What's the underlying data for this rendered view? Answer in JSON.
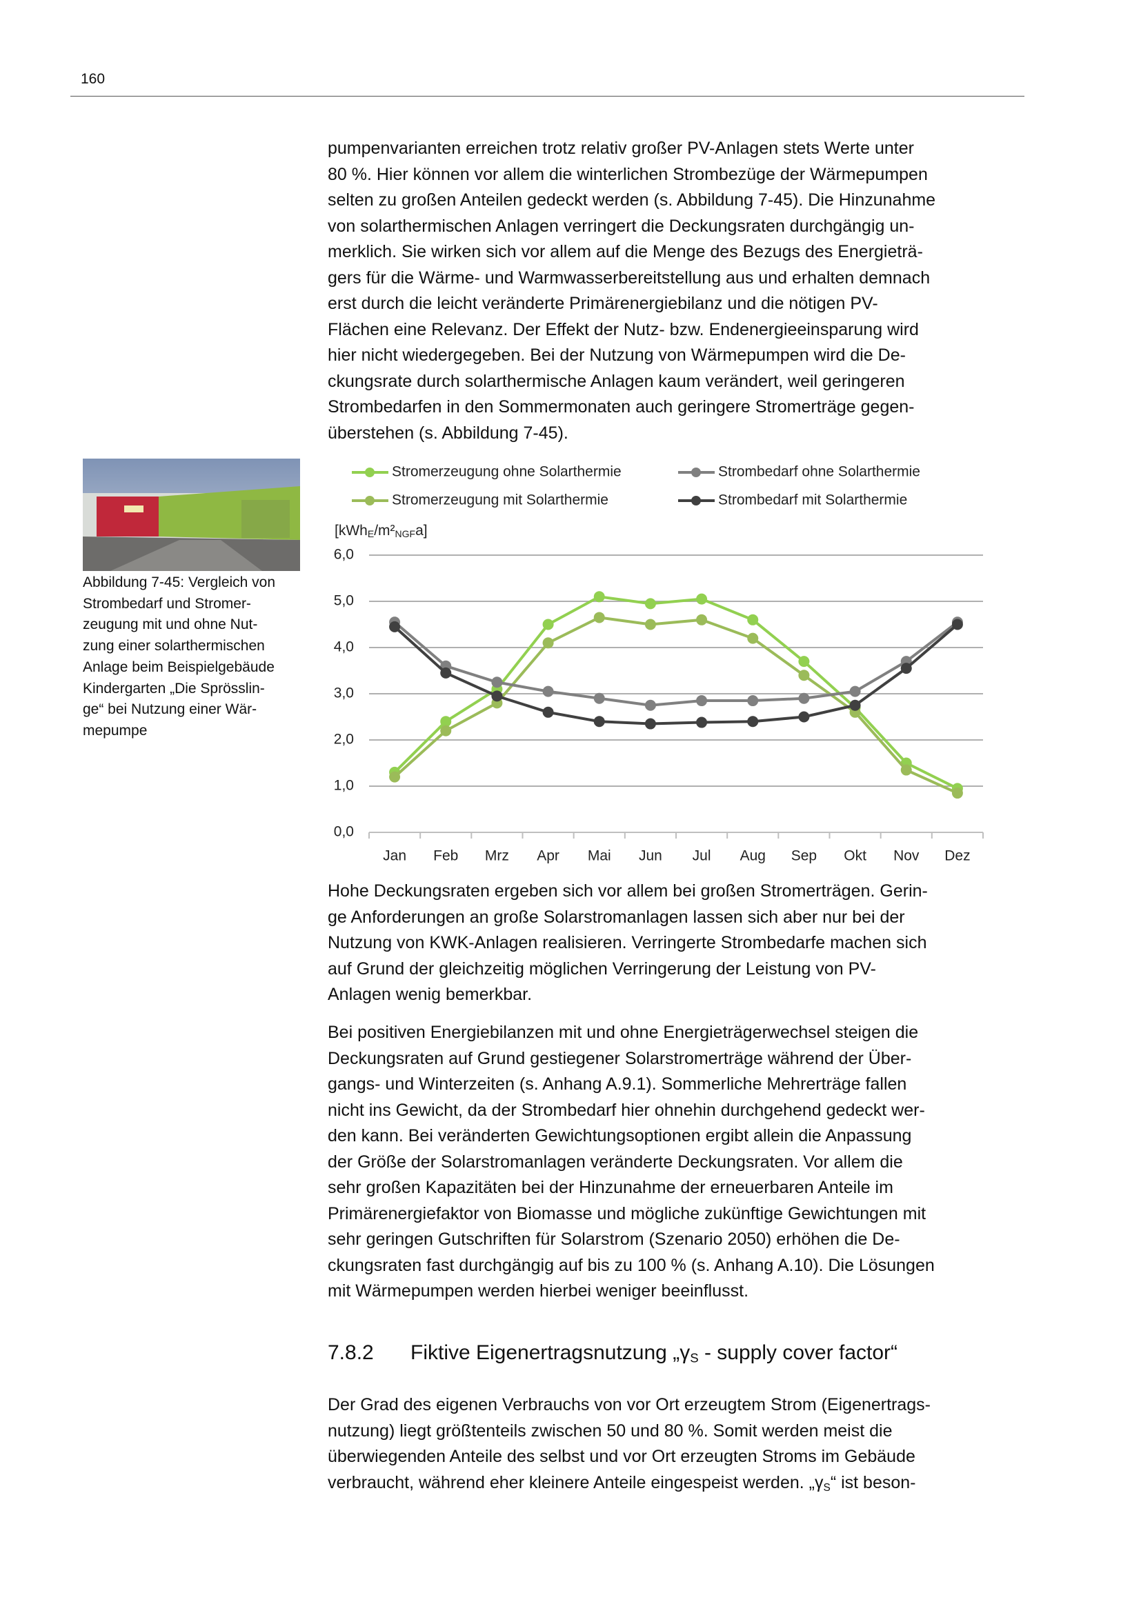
{
  "header": {
    "page_number": "160"
  },
  "figure": {
    "caption_lines": [
      "Abbildung 7-45: Vergleich von",
      "Strombedarf und Stromer-",
      "zeugung mit und ohne Nut-",
      "zung einer solarthermischen",
      "Anlage beim Beispielgebäude",
      "Kindergarten „Die Sprösslin-",
      "ge“ bei Nutzung einer Wär-",
      "mepumpe"
    ]
  },
  "chart_data": {
    "type": "line",
    "y_label_parts": [
      "[kWh",
      "E",
      "/m²",
      "NGF",
      "a]"
    ],
    "categories": [
      "Jan",
      "Feb",
      "Mrz",
      "Apr",
      "Mai",
      "Jun",
      "Jul",
      "Aug",
      "Sep",
      "Okt",
      "Nov",
      "Dez"
    ],
    "series": [
      {
        "name": "Stromerzeugung ohne Solarthermie",
        "color": "#92d050",
        "values": [
          1.3,
          2.4,
          3.1,
          4.5,
          5.1,
          4.95,
          5.05,
          4.6,
          3.7,
          2.7,
          1.5,
          0.95
        ]
      },
      {
        "name": "Strombedarf ohne Solarthermie",
        "color": "#808080",
        "values": [
          4.55,
          3.6,
          3.25,
          3.05,
          2.9,
          2.75,
          2.85,
          2.85,
          2.9,
          3.05,
          3.7,
          4.55
        ]
      },
      {
        "name": "Stromerzeugung mit Solarthermie",
        "color": "#9bbb59",
        "values": [
          1.2,
          2.2,
          2.8,
          4.1,
          4.65,
          4.5,
          4.6,
          4.2,
          3.4,
          2.6,
          1.35,
          0.85
        ]
      },
      {
        "name": "Strombedarf mit Solarthermie",
        "color": "#404040",
        "values": [
          4.45,
          3.45,
          2.95,
          2.6,
          2.4,
          2.35,
          2.38,
          2.4,
          2.5,
          2.75,
          3.55,
          4.5
        ]
      }
    ],
    "ylim": [
      0,
      6
    ],
    "yticks": [
      {
        "value": 0,
        "label": "0,0"
      },
      {
        "value": 1,
        "label": "1,0"
      },
      {
        "value": 2,
        "label": "2,0"
      },
      {
        "value": 3,
        "label": "3,0"
      },
      {
        "value": 4,
        "label": "4,0"
      },
      {
        "value": 5,
        "label": "5,0"
      },
      {
        "value": 6,
        "label": "6,0"
      }
    ],
    "grid": true
  },
  "heading": {
    "number": "7.8.2",
    "title": [
      "Fiktive Eigenertragsnutzung „γ",
      "S",
      " - supply cover factor“"
    ]
  },
  "paragraphs": [
    {
      "lines": [
        "pumpenvarianten erreichen trotz relativ großer PV-Anlagen stets Werte unter",
        "80 %. Hier können vor allem die winterlichen Strombezüge der Wärmepumpen",
        "selten zu großen Anteilen gedeckt werden (s. Abbildung 7-45). Die Hinzunahme",
        "von solarthermischen Anlagen verringert die Deckungsraten durchgängig un-",
        "merklich. Sie wirken sich vor allem auf die Menge des Bezugs des Energieträ-",
        "gers für die Wärme- und Warmwasserbereitstellung aus und erhalten demnach",
        "erst durch die leicht veränderte Primärenergiebilanz und die nötigen PV-",
        "Flächen eine Relevanz. Der Effekt der Nutz- bzw. Endenergieeinsparung wird",
        "hier nicht wiedergegeben. Bei der Nutzung von Wärmepumpen wird die De-",
        "ckungsrate durch solarthermische Anlagen kaum verändert, weil geringeren",
        "Strombedarfen in den Sommermonaten auch geringere Stromerträge gegen-",
        "überstehen (s. Abbildung 7-45)."
      ]
    },
    {
      "lines": [
        "Hohe Deckungsraten ergeben sich vor allem bei großen Stromerträgen. Gerin-",
        "ge Anforderungen an große Solarstromanlagen lassen sich aber nur bei der",
        "Nutzung von KWK-Anlagen realisieren. Verringerte Strombedarfe machen sich",
        "auf Grund der gleichzeitig möglichen Verringerung der Leistung von PV-",
        "Anlagen wenig bemerkbar."
      ]
    },
    {
      "lines": [
        "Bei positiven Energiebilanzen mit und ohne Energieträgerwechsel steigen die",
        "Deckungsraten auf Grund gestiegener Solarstromerträge während der Über-",
        "gangs- und Winterzeiten (s. Anhang A.9.1). Sommerliche Mehrerträge fallen",
        "nicht ins Gewicht, da der Strombedarf hier ohnehin durchgehend gedeckt wer-",
        "den kann. Bei veränderten Gewichtungsoptionen ergibt allein die Anpassung",
        "der Größe der Solarstromanlagen veränderte Deckungsraten. Vor allem die",
        "sehr großen Kapazitäten bei der Hinzunahme der erneuerbaren Anteile im",
        "Primärenergiefaktor von Biomasse und mögliche zukünftige Gewichtungen mit",
        "sehr geringen Gutschriften für Solarstrom (Szenario 2050) erhöhen die De-",
        "ckungsraten fast durchgängig auf bis zu 100 % (s. Anhang A.10). Die Lösungen",
        "mit Wärmepumpen werden hierbei weniger beeinflusst."
      ]
    },
    {
      "lines": [
        "Der Grad des eigenen Verbrauchs von vor Ort erzeugtem Strom (Eigenertrags-",
        "nutzung) liegt größtenteils zwischen 50 und 80 %. Somit werden meist die",
        "überwiegenden Anteile des selbst und vor Ort erzeugten Stroms im Gebäude",
        [
          "verbraucht, während eher kleinere Anteile eingespeist werden. „γ",
          "S",
          "“ ist beson-"
        ]
      ]
    }
  ]
}
